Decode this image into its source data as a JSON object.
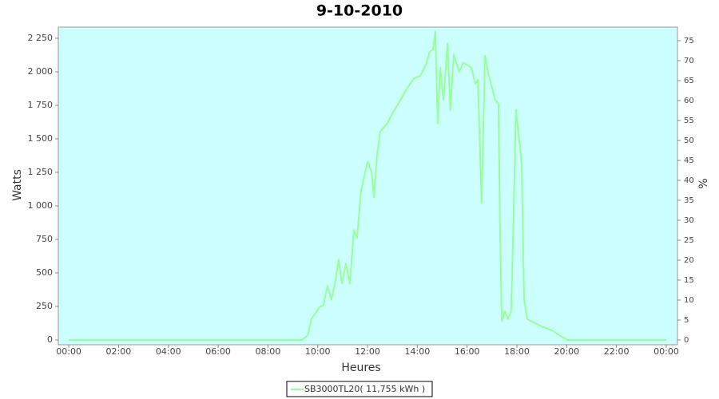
{
  "chart_data": {
    "type": "line",
    "title": "9-10-2010",
    "x_label": "Heures",
    "y_label": "Watts",
    "y2_label": "%",
    "x": [
      0,
      9.37,
      9.6,
      9.75,
      10.07,
      10.23,
      10.39,
      10.55,
      10.72,
      10.84,
      10.97,
      11.13,
      11.29,
      11.45,
      11.58,
      11.74,
      11.84,
      12.0,
      12.16,
      12.26,
      12.38,
      12.51,
      12.8,
      13.03,
      13.28,
      13.6,
      13.86,
      14.12,
      14.34,
      14.5,
      14.63,
      14.72,
      14.82,
      14.92,
      15.05,
      15.21,
      15.33,
      15.46,
      15.68,
      15.85,
      16.17,
      16.33,
      16.43,
      16.58,
      16.72,
      16.87,
      17.13,
      17.26,
      17.32,
      17.39,
      17.52,
      17.64,
      17.77,
      17.87,
      17.96,
      18.09,
      18.19,
      18.29,
      18.42,
      18.74,
      19.06,
      19.38,
      19.7,
      20.02,
      24
    ],
    "series": [
      {
        "name": "SB3000TL20( 11,755 kWh )",
        "color": "#99ff99",
        "values": [
          0,
          0,
          35,
          155,
          245,
          260,
          405,
          300,
          450,
          600,
          420,
          570,
          420,
          820,
          760,
          1110,
          1195,
          1330,
          1255,
          1065,
          1375,
          1555,
          1615,
          1700,
          1775,
          1880,
          1950,
          1970,
          2050,
          2150,
          2165,
          2300,
          1615,
          2030,
          1790,
          2210,
          1715,
          2130,
          2000,
          2070,
          2030,
          1910,
          1940,
          1020,
          2120,
          1970,
          1790,
          1760,
          870,
          140,
          215,
          155,
          215,
          960,
          1715,
          1495,
          1315,
          300,
          155,
          125,
          95,
          75,
          35,
          0,
          0
        ]
      }
    ],
    "xlim": [
      -0.42,
      24.45
    ],
    "xticks": [
      {
        "value": 0,
        "label": "00:00"
      },
      {
        "value": 2,
        "label": "02:00"
      },
      {
        "value": 4,
        "label": "04:00"
      },
      {
        "value": 6,
        "label": "06:00"
      },
      {
        "value": 8,
        "label": "08:00"
      },
      {
        "value": 10,
        "label": "10:00"
      },
      {
        "value": 12,
        "label": "12:00"
      },
      {
        "value": 14,
        "label": "14:00"
      },
      {
        "value": 16,
        "label": "16:00"
      },
      {
        "value": 18,
        "label": "18:00"
      },
      {
        "value": 20,
        "label": "20:00"
      },
      {
        "value": 22,
        "label": "22:00"
      },
      {
        "value": 24,
        "label": "00:00"
      }
    ],
    "ylim": [
      -36,
      2333
    ],
    "yticks": [
      0,
      250,
      500,
      750,
      {
        "value": 1000,
        "label": "1 000"
      },
      {
        "value": 1250,
        "label": "1 250"
      },
      {
        "value": 1500,
        "label": "1 500"
      },
      {
        "value": 1750,
        "label": "1 750"
      },
      {
        "value": 2000,
        "label": "2 000"
      },
      {
        "value": 2250,
        "label": "2 250"
      }
    ],
    "y2lim": [
      -1.2,
      78.4
    ],
    "y2ticks": [
      0,
      5,
      10,
      15,
      20,
      25,
      30,
      35,
      40,
      45,
      50,
      55,
      60,
      65,
      70,
      75
    ],
    "plot_background": "#ccffff",
    "grid": false
  }
}
